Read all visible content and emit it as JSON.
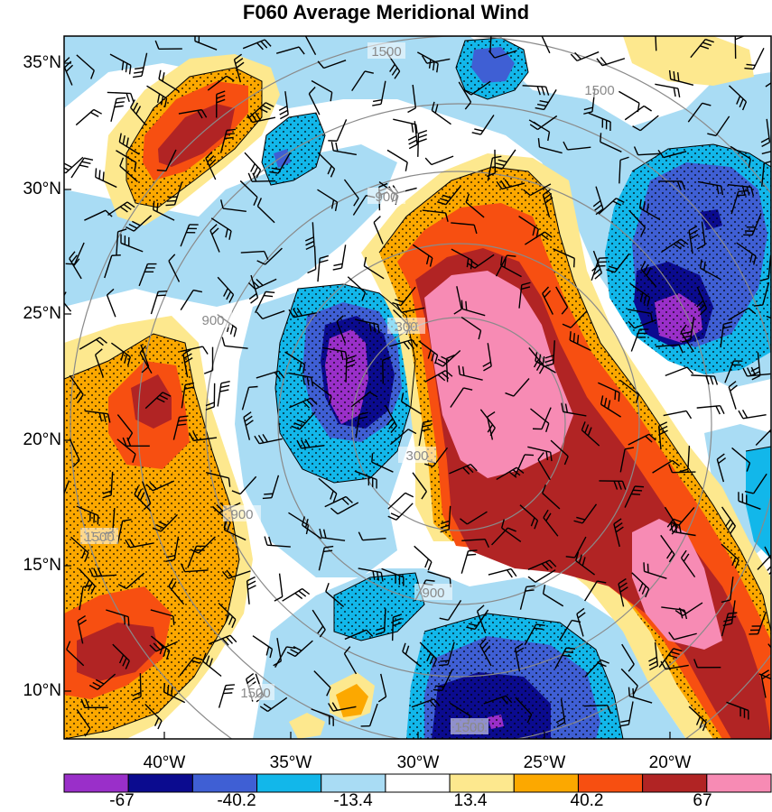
{
  "title": "F060 Average Meridional Wind",
  "map": {
    "lat_labels": [
      "35°N",
      "30°N",
      "25°N",
      "20°N",
      "15°N",
      "10°N"
    ],
    "lon_labels": [
      "40°W",
      "35°W",
      "30°W",
      "25°W",
      "20°W"
    ],
    "range_ring_labels": [
      "300",
      "300",
      "900",
      "900",
      "900",
      "900",
      "1500",
      "1500",
      "1500",
      "1500",
      "1500"
    ],
    "legend_labels": [
      "-67",
      "-40.2",
      "-13.4",
      "13.4",
      "40.2",
      "67"
    ],
    "legend_colors": [
      "#9a2fc9",
      "#0b0b8f",
      "#3f5fd4",
      "#12b7ea",
      "#a9dcf4",
      "#ffffff",
      "#fde88e",
      "#fca800",
      "#f74f11",
      "#b12424",
      "#f78bb4"
    ],
    "ring_color": "#8a8a8a"
  }
}
